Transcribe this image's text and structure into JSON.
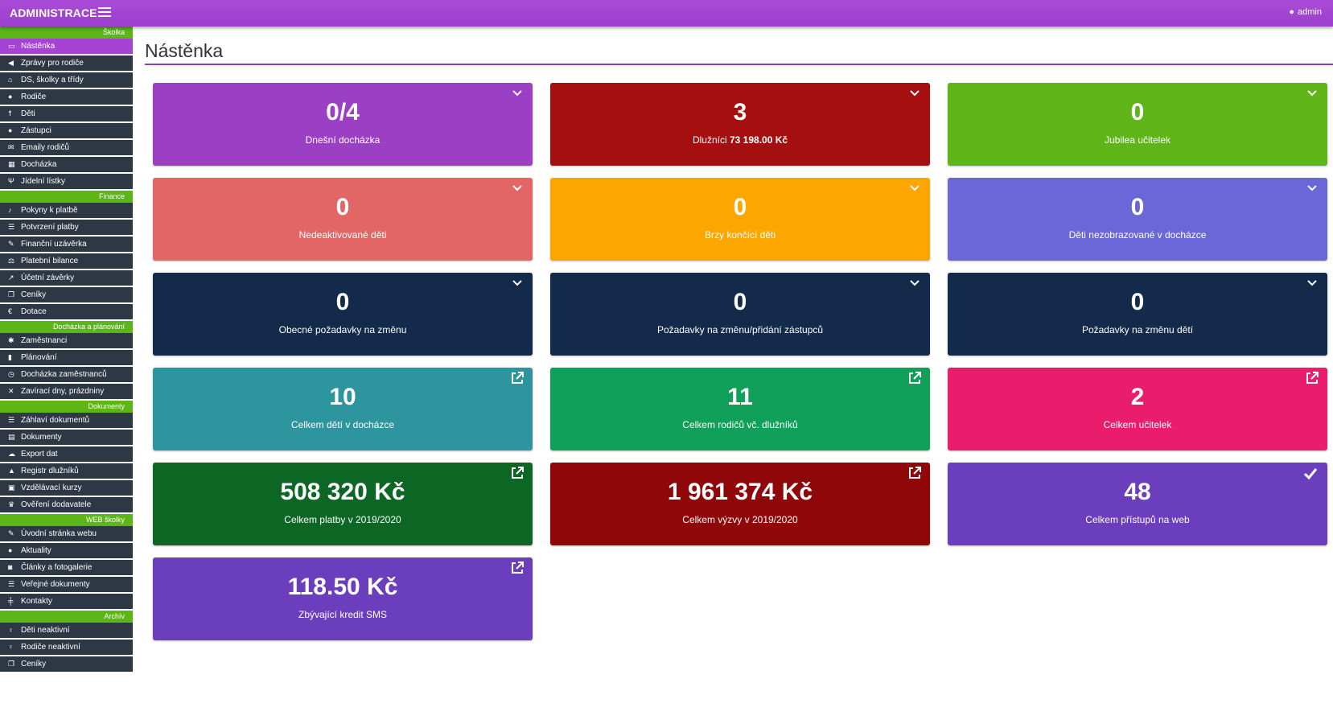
{
  "header": {
    "brand": "ADMINISTRACE",
    "user": "admin"
  },
  "sidebar": {
    "sections": [
      {
        "title": "Školka",
        "items": [
          {
            "label": "Nástěnka",
            "icon": "laptop-icon",
            "glyph": "▭",
            "active": true
          },
          {
            "label": "Zprávy pro rodiče",
            "icon": "bullhorn-icon",
            "glyph": "◀"
          },
          {
            "label": "DS, školky a třídy",
            "icon": "home-icon",
            "glyph": "⌂"
          },
          {
            "label": "Rodiče",
            "icon": "user-icon",
            "glyph": "●"
          },
          {
            "label": "Děti",
            "icon": "child-icon",
            "glyph": "☨"
          },
          {
            "label": "Zástupci",
            "icon": "user-icon",
            "glyph": "●"
          },
          {
            "label": "Emaily rodičů",
            "icon": "envelope-icon",
            "glyph": "✉"
          },
          {
            "label": "Docházka",
            "icon": "calendar-icon",
            "glyph": "▦"
          },
          {
            "label": "Jídelní lístky",
            "icon": "cutlery-icon",
            "glyph": "Ψ"
          }
        ]
      },
      {
        "title": "Finance",
        "items": [
          {
            "label": "Pokyny k platbě",
            "icon": "bell-icon",
            "glyph": "♪"
          },
          {
            "label": "Potvrzení platby",
            "icon": "list-icon",
            "glyph": "☰"
          },
          {
            "label": "Finanční uzávěrka",
            "icon": "wrench-icon",
            "glyph": "✎"
          },
          {
            "label": "Platební bilance",
            "icon": "balance-scale-icon",
            "glyph": "⚖"
          },
          {
            "label": "Účetní závěrky",
            "icon": "line-chart-icon",
            "glyph": "↗"
          },
          {
            "label": "Ceníky",
            "icon": "copy-icon",
            "glyph": "❐"
          },
          {
            "label": "Dotace",
            "icon": "euro-icon",
            "glyph": "€"
          }
        ]
      },
      {
        "title": "Docházka a plánování",
        "items": [
          {
            "label": "Zaměstnanci",
            "icon": "users-icon",
            "glyph": "✱"
          },
          {
            "label": "Plánování",
            "icon": "bar-chart-icon",
            "glyph": "▮"
          },
          {
            "label": "Docházka zaměstnanců",
            "icon": "clock-icon",
            "glyph": "◷"
          },
          {
            "label": "Zavírací dny, prázdniny",
            "icon": "close-icon",
            "glyph": "✕"
          }
        ]
      },
      {
        "title": "Dokumenty",
        "items": [
          {
            "label": "Záhlaví dokumentů",
            "icon": "list-icon",
            "glyph": "☰"
          },
          {
            "label": "Dokumenty",
            "icon": "book-icon",
            "glyph": "▤"
          },
          {
            "label": "Export dat",
            "icon": "cloud-download-icon",
            "glyph": "☁"
          },
          {
            "label": "Registr dlužníků",
            "icon": "warning-icon",
            "glyph": "▲"
          },
          {
            "label": "Vzdělávací kurzy",
            "icon": "briefcase-icon",
            "glyph": "▣"
          },
          {
            "label": "Ověření dodavatele",
            "icon": "trophy-icon",
            "glyph": "♛"
          }
        ]
      },
      {
        "title": "WEB školky",
        "items": [
          {
            "label": "Úvodní stránka webu",
            "icon": "pencil-icon",
            "glyph": "✎"
          },
          {
            "label": "Aktuality",
            "icon": "comment-icon",
            "glyph": "●"
          },
          {
            "label": "Články a fotogalerie",
            "icon": "camera-icon",
            "glyph": "◙"
          },
          {
            "label": "Veřejné dokumenty",
            "icon": "list-icon",
            "glyph": "☰"
          },
          {
            "label": "Kontakty",
            "icon": "signpost-icon",
            "glyph": "╪"
          }
        ]
      },
      {
        "title": "Archív",
        "items": [
          {
            "label": "Děti neaktivní",
            "icon": "female-icon",
            "glyph": "♀"
          },
          {
            "label": "Rodiče neaktivní",
            "icon": "female-icon",
            "glyph": "♀"
          },
          {
            "label": "Ceníky",
            "icon": "copy-icon",
            "glyph": "❐"
          }
        ]
      }
    ]
  },
  "main": {
    "title": "Nástěnka",
    "cards": [
      {
        "value": "0/4",
        "label": "Dnešní docházka",
        "color": "#9b3fc4",
        "icon": "chevron-down-icon"
      },
      {
        "value": "3",
        "label": "Dlužníci",
        "label_bold": "73 198.00 Kč",
        "color": "#a50f10",
        "icon": "chevron-down-icon"
      },
      {
        "value": "0",
        "label": "Jubilea učitelek",
        "color": "#5fb518",
        "icon": "chevron-down-icon"
      },
      {
        "value": "0",
        "label": "Nedeaktivované děti",
        "color": "#e36666",
        "icon": "chevron-down-icon"
      },
      {
        "value": "0",
        "label": "Brzy končící děti",
        "color": "#fea600",
        "icon": "chevron-down-icon"
      },
      {
        "value": "0",
        "label": "Děti nezobrazované v docházce",
        "color": "#6a67d8",
        "icon": "chevron-down-icon"
      },
      {
        "value": "0",
        "label": "Obecné požadavky na změnu",
        "color": "#132a4b",
        "icon": "chevron-down-icon"
      },
      {
        "value": "0",
        "label": "Požadavky na změnu/přidání zástupců",
        "color": "#132a4b",
        "icon": "chevron-down-icon"
      },
      {
        "value": "0",
        "label": "Požadavky na změnu dětí",
        "color": "#132a4b",
        "icon": "chevron-down-icon"
      },
      {
        "value": "10",
        "label": "Celkem dětí v docházce",
        "color": "#2c959e",
        "icon": "external-link-icon"
      },
      {
        "value": "11",
        "label": "Celkem rodičů vč. dlužníků",
        "color": "#11a05a",
        "icon": "external-link-icon"
      },
      {
        "value": "2",
        "label": "Celkem učitelek",
        "color": "#ea1c6c",
        "icon": "external-link-icon"
      },
      {
        "value": "508 320 Kč",
        "label": "Celkem platby v 2019/2020",
        "color": "#0c6624",
        "icon": "external-link-icon"
      },
      {
        "value": "1 961 374 Kč",
        "label": "Celkem výzvy v 2019/2020",
        "color": "#8f0709",
        "icon": "external-link-icon"
      },
      {
        "value": "48",
        "label": "Celkem přístupů na web",
        "color": "#6a3ebd",
        "icon": "check-icon"
      },
      {
        "value": "118.50 Kč",
        "label": "Zbývající kredit SMS",
        "color": "#6a3ebd",
        "icon": "external-link-icon"
      }
    ]
  }
}
